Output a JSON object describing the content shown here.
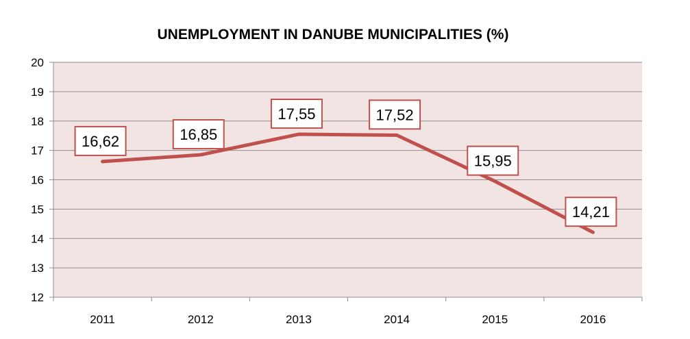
{
  "chart_data": {
    "type": "line",
    "title": "UNEMPLOYMENT IN DANUBE MUNICIPALITIES (%)",
    "xlabel": "",
    "ylabel": "",
    "categories": [
      "2011",
      "2012",
      "2013",
      "2014",
      "2015",
      "2016"
    ],
    "series": [
      {
        "values": [
          16.62,
          16.85,
          17.55,
          17.52,
          15.95,
          14.21
        ],
        "labels": [
          "16,62",
          "16,85",
          "17,55",
          "17,52",
          "15,95",
          "14,21"
        ],
        "color": "#c0504d"
      }
    ],
    "ylim": [
      12,
      20
    ],
    "yticks": [
      "12",
      "13",
      "14",
      "15",
      "16",
      "17",
      "18",
      "19",
      "20"
    ],
    "grid": true,
    "legend": "none",
    "colors": {
      "plot_background": "#f2e4e3",
      "gridline": "#8c8c8c",
      "line": "#c0504d",
      "label_border": "#c0504d"
    }
  }
}
